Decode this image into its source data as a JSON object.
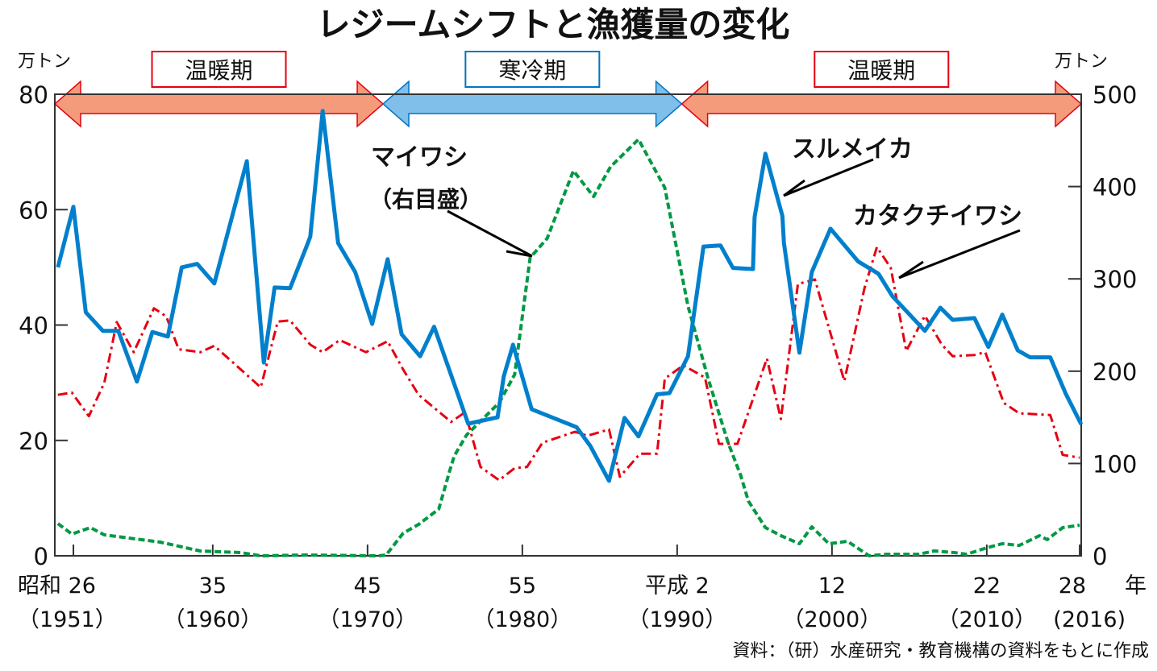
{
  "chart_data": {
    "type": "line",
    "title": "レジームシフトと漁獲量の変化",
    "left_unit": "万トン",
    "right_unit": "万トン",
    "ylim_left": [
      0,
      80
    ],
    "ylim_right": [
      0,
      500
    ],
    "xlim": [
      1949.8,
      2016.1
    ],
    "yticks_left": [
      "0",
      "20",
      "40",
      "60",
      "80"
    ],
    "yticks_right": [
      "0",
      "100",
      "200",
      "300",
      "400",
      "500"
    ],
    "xticks": [
      {
        "year": 1951,
        "label": "昭和 26",
        "sub": "（1951）"
      },
      {
        "year": 1960,
        "label": "35",
        "sub": "（1960）"
      },
      {
        "year": 1970,
        "label": "45",
        "sub": "（1970）"
      },
      {
        "year": 1980,
        "label": "55",
        "sub": "（1980）"
      },
      {
        "year": 1990,
        "label": "平成 2",
        "sub": "（1990）"
      },
      {
        "year": 2000,
        "label": "12",
        "sub": "（2000）"
      },
      {
        "year": 2010,
        "label": "22",
        "sub": "（2010）"
      },
      {
        "year": 2016,
        "label": "28",
        "sub": "(2016)"
      }
    ],
    "x_unit": "年",
    "periods": [
      {
        "label": "温暖期",
        "from": 1949.8,
        "to": 1971.0,
        "color": "#f39b7a",
        "stroke": "#e60012"
      },
      {
        "label": "寒冷期",
        "from": 1971.0,
        "to": 1990.3,
        "color": "#7fbfea",
        "stroke": "#0075c2"
      },
      {
        "label": "温暖期",
        "from": 1990.3,
        "to": 2016.1,
        "color": "#f39b7a",
        "stroke": "#e60012"
      }
    ],
    "series": [
      {
        "name": "スルメイカ",
        "axis": "left",
        "color": "#0080cc",
        "style": "solid",
        "points": [
          [
            1950,
            50.0
          ],
          [
            1951,
            60.5
          ],
          [
            1951.8,
            42.2
          ],
          [
            1952.9,
            39.0
          ],
          [
            1953.9,
            39.0
          ],
          [
            1955.1,
            30.2
          ],
          [
            1956.1,
            38.8
          ],
          [
            1957.1,
            38.0
          ],
          [
            1958.0,
            50.0
          ],
          [
            1959.0,
            50.6
          ],
          [
            1960.1,
            47.2
          ],
          [
            1962.2,
            68.4
          ],
          [
            1963.3,
            33.5
          ],
          [
            1964.0,
            46.5
          ],
          [
            1965.0,
            46.4
          ],
          [
            1966.0,
            53.2
          ],
          [
            1966.3,
            55.3
          ],
          [
            1967.1,
            77.1
          ],
          [
            1968.1,
            54.2
          ],
          [
            1969.2,
            49.2
          ],
          [
            1970.3,
            40.2
          ],
          [
            1971.3,
            51.4
          ],
          [
            1972.2,
            38.4
          ],
          [
            1973.4,
            34.6
          ],
          [
            1974.3,
            39.7
          ],
          [
            1976.5,
            22.9
          ],
          [
            1978.4,
            24.0
          ],
          [
            1978.8,
            31.1
          ],
          [
            1979.4,
            36.6
          ],
          [
            1980.6,
            25.4
          ],
          [
            1983.5,
            22.3
          ],
          [
            1984.4,
            19.0
          ],
          [
            1985.6,
            13.0
          ],
          [
            1986.6,
            23.9
          ],
          [
            1987.5,
            20.7
          ],
          [
            1988.7,
            28.0
          ],
          [
            1989.5,
            28.2
          ],
          [
            1990.7,
            34.6
          ],
          [
            1991.7,
            53.6
          ],
          [
            1992.8,
            53.8
          ],
          [
            1993.6,
            49.9
          ],
          [
            1994.9,
            49.7
          ],
          [
            1995.0,
            58.7
          ],
          [
            1995.7,
            69.7
          ],
          [
            1996.8,
            58.9
          ],
          [
            1996.9,
            54.2
          ],
          [
            1997.9,
            35.2
          ],
          [
            1998.7,
            49.2
          ],
          [
            1999.9,
            56.7
          ],
          [
            2001.7,
            51.0
          ],
          [
            2003.0,
            48.9
          ],
          [
            2003.9,
            45.0
          ],
          [
            2006.0,
            39.0
          ],
          [
            2007.0,
            43.0
          ],
          [
            2007.8,
            40.9
          ],
          [
            2009.2,
            41.2
          ],
          [
            2010.1,
            36.2
          ],
          [
            2011.0,
            41.8
          ],
          [
            2012.0,
            35.6
          ],
          [
            2012.8,
            34.4
          ],
          [
            2014.1,
            34.4
          ],
          [
            2015.1,
            28.1
          ],
          [
            2016.1,
            22.8
          ]
        ]
      },
      {
        "name": "カタクチイワシ",
        "axis": "left",
        "color": "#e60012",
        "style": "dashdot",
        "points": [
          [
            1950,
            27.9
          ],
          [
            1950.9,
            28.3
          ],
          [
            1952.0,
            24.2
          ],
          [
            1953.0,
            30.0
          ],
          [
            1953.8,
            40.5
          ],
          [
            1954.9,
            35.3
          ],
          [
            1956.2,
            42.9
          ],
          [
            1957.0,
            41.5
          ],
          [
            1957.8,
            35.8
          ],
          [
            1959.2,
            35.3
          ],
          [
            1960.1,
            36.4
          ],
          [
            1963.1,
            29.2
          ],
          [
            1964.2,
            40.6
          ],
          [
            1965.0,
            40.8
          ],
          [
            1966.3,
            36.6
          ],
          [
            1967.1,
            35.3
          ],
          [
            1968.2,
            37.4
          ],
          [
            1969.9,
            35.3
          ],
          [
            1971.3,
            37.2
          ],
          [
            1972.3,
            32.3
          ],
          [
            1973.3,
            27.9
          ],
          [
            1975.4,
            23.2
          ],
          [
            1976.3,
            24.9
          ],
          [
            1977.3,
            15.4
          ],
          [
            1978.5,
            13.1
          ],
          [
            1979.5,
            15.2
          ],
          [
            1980.3,
            15.4
          ],
          [
            1981.3,
            19.6
          ],
          [
            1983.4,
            21.5
          ],
          [
            1984.2,
            20.8
          ],
          [
            1985.6,
            21.9
          ],
          [
            1986.3,
            13.7
          ],
          [
            1987.6,
            17.7
          ],
          [
            1988.7,
            17.7
          ],
          [
            1989.2,
            30.7
          ],
          [
            1990.4,
            33.0
          ],
          [
            1991.8,
            30.9
          ],
          [
            1992.7,
            19.4
          ],
          [
            1993.9,
            19.4
          ],
          [
            1995.8,
            34.2
          ],
          [
            1996.7,
            23.7
          ],
          [
            1997.8,
            47.1
          ],
          [
            1998.9,
            47.9
          ],
          [
            2000.8,
            30.3
          ],
          [
            2002.1,
            46.4
          ],
          [
            2002.9,
            53.5
          ],
          [
            2003.8,
            49.9
          ],
          [
            2004.8,
            35.5
          ],
          [
            2006.0,
            41.6
          ],
          [
            2007.1,
            36.6
          ],
          [
            2007.8,
            34.6
          ],
          [
            2009.2,
            34.8
          ],
          [
            2009.9,
            35.3
          ],
          [
            2011.1,
            26.5
          ],
          [
            2012.1,
            24.7
          ],
          [
            2014.1,
            24.4
          ],
          [
            2014.9,
            17.5
          ],
          [
            2016.0,
            17.0
          ]
        ]
      },
      {
        "name": "マイワシ",
        "axis": "right",
        "color": "#009944",
        "style": "dashed",
        "points": [
          [
            1950,
            34.9
          ],
          [
            1950.9,
            23.6
          ],
          [
            1952.1,
            30.5
          ],
          [
            1953.0,
            22.7
          ],
          [
            1956.6,
            14.8
          ],
          [
            1959.2,
            5.2
          ],
          [
            1961.8,
            3.5
          ],
          [
            1963.1,
            0
          ],
          [
            1966.0,
            0.9
          ],
          [
            1970.7,
            0
          ],
          [
            1971.2,
            0.9
          ],
          [
            1972.3,
            24.4
          ],
          [
            1973.3,
            34.0
          ],
          [
            1974.6,
            50.6
          ],
          [
            1975.3,
            91.6
          ],
          [
            1975.6,
            108.2
          ],
          [
            1976.4,
            130.9
          ],
          [
            1978.5,
            165.8
          ],
          [
            1979.5,
            196.3
          ],
          [
            1980.5,
            322.9
          ],
          [
            1981.6,
            343.8
          ],
          [
            1983.3,
            417.1
          ],
          [
            1984.6,
            389.2
          ],
          [
            1985.7,
            421.5
          ],
          [
            1987.5,
            451.1
          ],
          [
            1989.2,
            398.8
          ],
          [
            1990.7,
            270.5
          ],
          [
            1992.0,
            191.9
          ],
          [
            1993.3,
            122.2
          ],
          [
            1994.1,
            87.3
          ],
          [
            1994.6,
            59.3
          ],
          [
            1995.7,
            30.5
          ],
          [
            1996.7,
            21.8
          ],
          [
            1997.9,
            13.1
          ],
          [
            1998.7,
            31.4
          ],
          [
            1999.8,
            13.1
          ],
          [
            2001.0,
            15.7
          ],
          [
            2002.4,
            0
          ],
          [
            2003.5,
            1.7
          ],
          [
            2005.6,
            1.7
          ],
          [
            2006.6,
            5.2
          ],
          [
            2007.9,
            3.5
          ],
          [
            2008.7,
            1.7
          ],
          [
            2010.0,
            8.7
          ],
          [
            2011.0,
            13.1
          ],
          [
            2012.1,
            11.3
          ],
          [
            2013.4,
            21.8
          ],
          [
            2013.9,
            17.5
          ],
          [
            2014.9,
            30.5
          ],
          [
            2016.0,
            33.2
          ]
        ]
      }
    ],
    "annotations": {
      "sardine": "マイワシ",
      "sardine_note": "（右目盛）",
      "squid": "スルメイカ",
      "anchovy": "カタクチイワシ"
    },
    "source": "資料：（研）水産研究・教育機構の資料をもとに作成"
  }
}
